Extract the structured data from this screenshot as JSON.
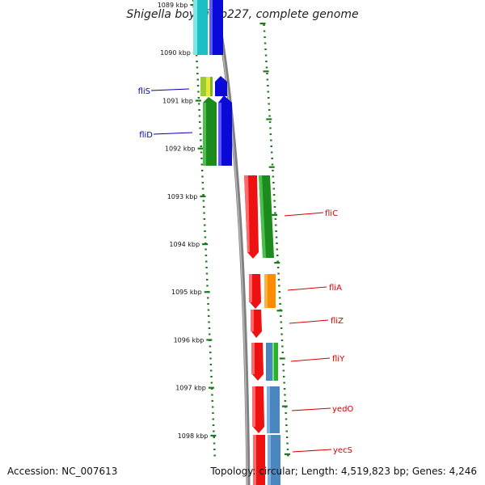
{
  "title": "Shigella boydii Sb227, complete genome",
  "footer": {
    "accession": "Accession: NC_007613",
    "summary": "Topology: circular; Length: 4,519,823 bp; Genes: 4,246"
  },
  "colors": {
    "tick_green": "#1c7a1c",
    "backbone": "#808080",
    "label_blue": "#0000c0",
    "label_red": "#d40000"
  },
  "ticks": [
    {
      "label": "1089 kbp"
    },
    {
      "label": "1090 kbp"
    },
    {
      "label": "1091 kbp"
    },
    {
      "label": "1092 kbp"
    },
    {
      "label": "1093 kbp"
    },
    {
      "label": "1094 kbp"
    },
    {
      "label": "1095 kbp"
    },
    {
      "label": "1096 kbp"
    },
    {
      "label": "1097 kbp"
    },
    {
      "label": "1098 kbp"
    }
  ],
  "gene_labels": [
    {
      "name": "fliS",
      "strand": "reverse"
    },
    {
      "name": "fliD",
      "strand": "reverse"
    },
    {
      "name": "fliC",
      "strand": "forward"
    },
    {
      "name": "fliA",
      "strand": "forward"
    },
    {
      "name": "fliZ",
      "strand": "forward"
    },
    {
      "name": "fliY",
      "strand": "forward"
    },
    {
      "name": "yedO",
      "strand": "forward"
    },
    {
      "name": "yecS",
      "strand": "forward"
    }
  ]
}
